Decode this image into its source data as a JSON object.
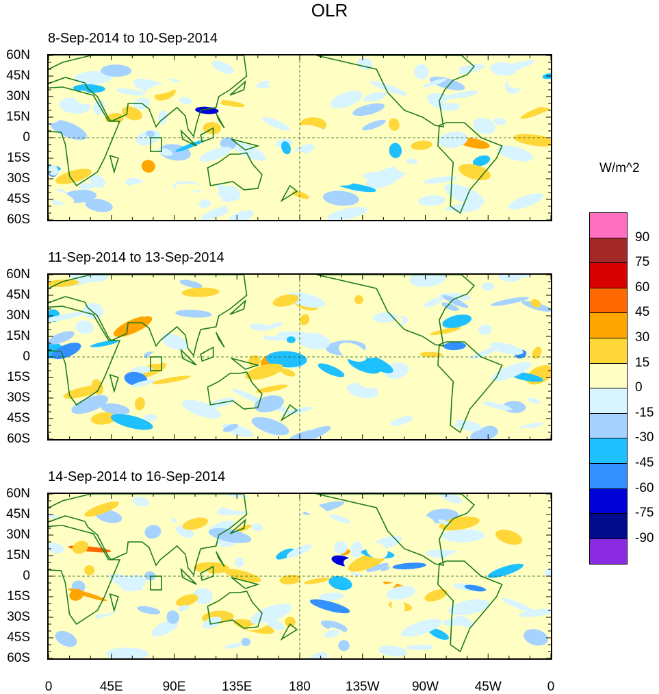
{
  "chart_data": {
    "type": "heatmap",
    "title": "OLR",
    "units": "W/m^2",
    "panels": [
      {
        "title": "8-Sep-2014 to 10-Sep-2014"
      },
      {
        "title": "11-Sep-2014 to 13-Sep-2014"
      },
      {
        "title": "14-Sep-2014 to 16-Sep-2014"
      }
    ],
    "lat_ticks": [
      "60N",
      "45N",
      "30N",
      "15N",
      "0",
      "15S",
      "30S",
      "45S",
      "60S"
    ],
    "lat_values": [
      60,
      45,
      30,
      15,
      0,
      -15,
      -30,
      -45,
      -60
    ],
    "lon_ticks": [
      "0",
      "45E",
      "90E",
      "135E",
      "180",
      "135W",
      "90W",
      "45W",
      "0"
    ],
    "lon_values": [
      0,
      45,
      90,
      135,
      180,
      225,
      270,
      315,
      360
    ],
    "xlim": [
      0,
      360
    ],
    "ylim": [
      -60,
      60
    ],
    "colorbar": {
      "levels": [
        "90",
        "75",
        "60",
        "45",
        "30",
        "15",
        "0",
        "-15",
        "-30",
        "-45",
        "-60",
        "-75",
        "-90"
      ],
      "colors": [
        "#ff6fbf",
        "#a52828",
        "#d80000",
        "#ff6a00",
        "#ffa500",
        "#ffd738",
        "#ffffc4",
        "#d8f4ff",
        "#a6d2ff",
        "#1ec0ff",
        "#3390ff",
        "#0000d8",
        "#000c8c",
        "#8b2be2"
      ]
    }
  }
}
